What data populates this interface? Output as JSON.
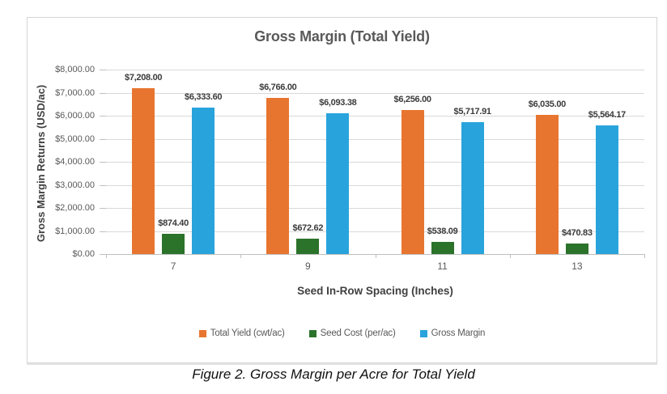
{
  "figure": {
    "caption": "Figure 2. Gross Margin per Acre for Total Yield"
  },
  "chart_data": {
    "type": "bar",
    "title": "Gross Margin (Total Yield)",
    "xlabel": "Seed In-Row Spacing (Inches)",
    "ylabel": "Gross Margin Returns (USD/ac)",
    "categories": [
      "7",
      "9",
      "11",
      "13"
    ],
    "series": [
      {
        "name": "Total Yield (cwt/ac)",
        "color": "#E8752F",
        "values": [
          7208.0,
          6766.0,
          6256.0,
          6035.0
        ],
        "labels": [
          "$7,208.00",
          "$6,766.00",
          "$6,256.00",
          "$6,035.00"
        ]
      },
      {
        "name": "Seed Cost (per/ac)",
        "color": "#2B722B",
        "values": [
          874.4,
          672.62,
          538.09,
          470.83
        ],
        "labels": [
          "$874.40",
          "$672.62",
          "$538.09",
          "$470.83"
        ]
      },
      {
        "name": "Gross Margin",
        "color": "#29A3DC",
        "values": [
          6333.6,
          6093.38,
          5717.91,
          5564.17
        ],
        "labels": [
          "$6,333.60",
          "$6,093.38",
          "$5,717.91",
          "$5,564.17"
        ]
      }
    ],
    "ylim": [
      0,
      8000
    ],
    "ytick_step": 1000,
    "ytick_labels": [
      "$0.00",
      "$1,000.00",
      "$2,000.00",
      "$3,000.00",
      "$4,000.00",
      "$5,000.00",
      "$6,000.00",
      "$7,000.00",
      "$8,000.00"
    ],
    "grid": true,
    "legend_position": "bottom",
    "colors": {
      "gridline": "#d9d9d9",
      "axis": "#bfbfbf",
      "title_text": "#595959",
      "tick_text": "#595959",
      "label_text": "#3b3b3b"
    }
  }
}
